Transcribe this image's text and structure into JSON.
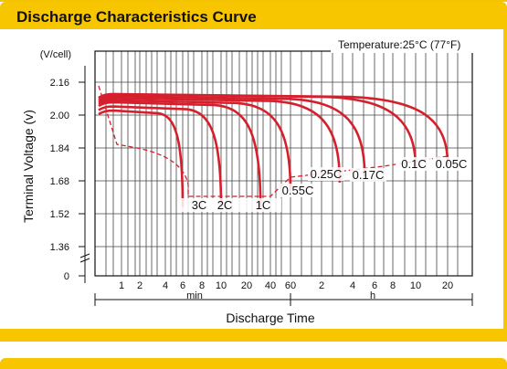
{
  "header": {
    "title": "Discharge Characteristics Curve"
  },
  "chart_data": {
    "type": "line",
    "title": "Discharge Characteristics Curve",
    "annotation": "Temperature:25°C (77°F)",
    "ylabel": "Terminal  Voltage  (v)",
    "yunit": "(V/cell)",
    "xlabel": "Discharge  Time",
    "x_min_label": "min",
    "x_h_label": "h",
    "yticks": [
      "2.16",
      "2.00",
      "1.84",
      "1.68",
      "1.52",
      "1.36",
      "0"
    ],
    "xticks": [
      "1",
      "2",
      "4",
      "6",
      "8",
      "10",
      "20",
      "40",
      "60",
      "2",
      "4",
      "6",
      "8",
      "10",
      "20"
    ],
    "grid": true,
    "series": [
      {
        "name": "3C",
        "end_time": "6 min",
        "start_voltage": 2.07,
        "end_voltage": 1.6
      },
      {
        "name": "2C",
        "end_time": "10 min",
        "start_voltage": 2.09,
        "end_voltage": 1.6
      },
      {
        "name": "1C",
        "end_time": "30 min",
        "start_voltage": 2.11,
        "end_voltage": 1.6
      },
      {
        "name": "0.55C",
        "end_time": "60 min",
        "start_voltage": 2.12,
        "end_voltage": 1.68
      },
      {
        "name": "0.25C",
        "end_time": "3 h",
        "start_voltage": 2.13,
        "end_voltage": 1.72
      },
      {
        "name": "0.17C",
        "end_time": "5 h",
        "start_voltage": 2.14,
        "end_voltage": 1.75
      },
      {
        "name": "0.1C",
        "end_time": "10 h",
        "start_voltage": 2.15,
        "end_voltage": 1.79
      },
      {
        "name": "0.05C",
        "end_time": "20 h",
        "start_voltage": 2.15,
        "end_voltage": 1.81
      }
    ],
    "colors": {
      "curve": "#d61f2c",
      "grid": "#444444",
      "accent": "#f7c600"
    }
  }
}
